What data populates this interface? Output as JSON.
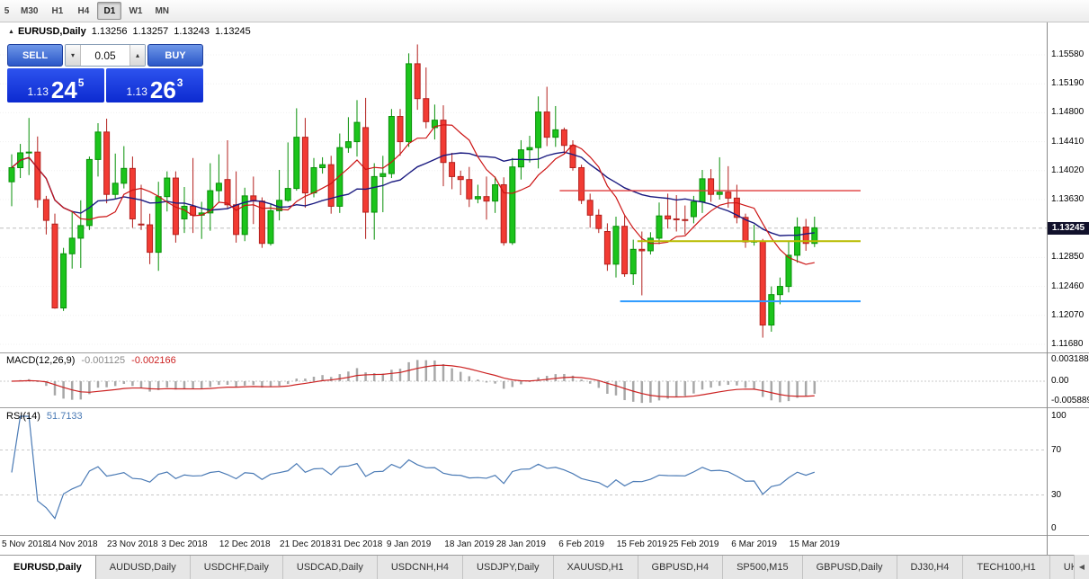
{
  "toolbar": {
    "timeframes": [
      {
        "label": "5",
        "active": false
      },
      {
        "label": "M30",
        "active": false
      },
      {
        "label": "H1",
        "active": false
      },
      {
        "label": "H4",
        "active": false
      },
      {
        "label": "D1",
        "active": true
      },
      {
        "label": "W1",
        "active": false
      },
      {
        "label": "MN",
        "active": false
      }
    ]
  },
  "chart_header": {
    "symbol": "EURUSD,Daily",
    "open": "1.13256",
    "high": "1.13257",
    "low": "1.13243",
    "close": "1.13245"
  },
  "trade_panel": {
    "sell_label": "SELL",
    "buy_label": "BUY",
    "volume": "0.05",
    "sell_price_prefix": "1.13",
    "sell_price_big": "24",
    "sell_price_sup": "5",
    "buy_price_prefix": "1.13",
    "buy_price_big": "26",
    "buy_price_sup": "3"
  },
  "icons": {
    "collapse_triangle": "▲",
    "volume_down": "▾",
    "volume_up": "▴",
    "tab_scroll_left": "◀"
  },
  "price_axis": [
    {
      "label": "1.15580",
      "price": 1.1558
    },
    {
      "label": "1.15190",
      "price": 1.1519
    },
    {
      "label": "1.14800",
      "price": 1.148
    },
    {
      "label": "1.14410",
      "price": 1.1441
    },
    {
      "label": "1.14020",
      "price": 1.1402
    },
    {
      "label": "1.13630",
      "price": 1.1363
    },
    {
      "label": "1.12850",
      "price": 1.1285
    },
    {
      "label": "1.12460",
      "price": 1.1246
    },
    {
      "label": "1.12070",
      "price": 1.1207
    },
    {
      "label": "1.11680",
      "price": 1.1168
    }
  ],
  "current_price": {
    "label": "1.13245",
    "price": 1.13245
  },
  "macd_panel": {
    "name": "MACD(12,26,9)",
    "value1": "-0.001125",
    "value2": "-0.002166",
    "axis": [
      "0.003188",
      "0.00",
      "-0.005889"
    ]
  },
  "rsi_panel": {
    "name": "RSI(14)",
    "value": "51.7133",
    "levels": [
      "100",
      "70",
      "30",
      "0"
    ],
    "level_values": [
      100,
      70,
      30,
      0
    ]
  },
  "date_axis": [
    {
      "label": "5 Nov 2018",
      "index": 0
    },
    {
      "label": "14 Nov 2018",
      "index": 7
    },
    {
      "label": "23 Nov 2018",
      "index": 14
    },
    {
      "label": "3 Dec 2018",
      "index": 20
    },
    {
      "label": "12 Dec 2018",
      "index": 27
    },
    {
      "label": "21 Dec 2018",
      "index": 34
    },
    {
      "label": "31 Dec 2018",
      "index": 40
    },
    {
      "label": "9 Jan 2019",
      "index": 46
    },
    {
      "label": "18 Jan 2019",
      "index": 53
    },
    {
      "label": "28 Jan 2019",
      "index": 59
    },
    {
      "label": "6 Feb 2019",
      "index": 66
    },
    {
      "label": "15 Feb 2019",
      "index": 73
    },
    {
      "label": "25 Feb 2019",
      "index": 79
    },
    {
      "label": "6 Mar 2019",
      "index": 86
    },
    {
      "label": "15 Mar 2019",
      "index": 93
    }
  ],
  "tabs": [
    {
      "label": "EURUSD,Daily",
      "active": true
    },
    {
      "label": "AUDUSD,Daily",
      "active": false
    },
    {
      "label": "USDCHF,Daily",
      "active": false
    },
    {
      "label": "USDCAD,Daily",
      "active": false
    },
    {
      "label": "USDCNH,H4",
      "active": false
    },
    {
      "label": "USDJPY,Daily",
      "active": false
    },
    {
      "label": "XAUUSD,H1",
      "active": false
    },
    {
      "label": "GBPUSD,H4",
      "active": false
    },
    {
      "label": "SP500,M15",
      "active": false
    },
    {
      "label": "GBPUSD,Daily",
      "active": false
    },
    {
      "label": "DJ30,H4",
      "active": false
    },
    {
      "label": "TECH100,H1",
      "active": false
    },
    {
      "label": "UKC",
      "active": false
    }
  ],
  "colors": {
    "up_fill": "#1cc41c",
    "up_border": "#089008",
    "down_fill": "#f23b33",
    "down_border": "#b3201d",
    "ma_fast": "#cc1414",
    "ma_slow": "#1a1a80",
    "macd_hist": "#a8a8a8",
    "macd_signal": "#cc2222",
    "rsi_line": "#4a7ab5",
    "badge_bg": "#11112b",
    "trade_blue": "#2a56c8",
    "price_panel_blue": "#0c2ad0"
  },
  "chart_data": {
    "type": "candlestick",
    "symbol": "EURUSD",
    "timeframe": "Daily",
    "price_range": [
      1.1157,
      1.1583
    ],
    "candles": [
      [
        1.1387,
        1.1424,
        1.1354,
        1.1406
      ],
      [
        1.1406,
        1.1438,
        1.1392,
        1.1426
      ],
      [
        1.1426,
        1.1473,
        1.1396,
        1.1427
      ],
      [
        1.1427,
        1.1448,
        1.1352,
        1.1363
      ],
      [
        1.1363,
        1.1368,
        1.1316,
        1.1335
      ],
      [
        1.133,
        1.1344,
        1.1216,
        1.1217
      ],
      [
        1.1217,
        1.1298,
        1.1213,
        1.129
      ],
      [
        1.129,
        1.1348,
        1.127,
        1.1311
      ],
      [
        1.1311,
        1.1362,
        1.1271,
        1.1328
      ],
      [
        1.1328,
        1.1421,
        1.1322,
        1.1417
      ],
      [
        1.1417,
        1.1466,
        1.1394,
        1.1454
      ],
      [
        1.1454,
        1.1472,
        1.1358,
        1.137
      ],
      [
        1.137,
        1.1425,
        1.1364,
        1.1385
      ],
      [
        1.1385,
        1.1435,
        1.1378,
        1.1405
      ],
      [
        1.1405,
        1.1421,
        1.1325,
        1.1337
      ],
      [
        1.133,
        1.1383,
        1.1322,
        1.1329
      ],
      [
        1.1329,
        1.1344,
        1.1276,
        1.1292
      ],
      [
        1.1292,
        1.1387,
        1.1267,
        1.1367
      ],
      [
        1.1367,
        1.1401,
        1.1347,
        1.1392
      ],
      [
        1.1392,
        1.1401,
        1.1305,
        1.1316
      ],
      [
        1.1337,
        1.138,
        1.1318,
        1.1354
      ],
      [
        1.1354,
        1.1419,
        1.1318,
        1.1342
      ],
      [
        1.1342,
        1.136,
        1.131,
        1.1345
      ],
      [
        1.1345,
        1.1412,
        1.1321,
        1.1375
      ],
      [
        1.1375,
        1.1424,
        1.136,
        1.1385
      ],
      [
        1.139,
        1.1443,
        1.1351,
        1.1356
      ],
      [
        1.1356,
        1.1401,
        1.1305,
        1.1316
      ],
      [
        1.1316,
        1.1379,
        1.1307,
        1.1368
      ],
      [
        1.1368,
        1.1394,
        1.133,
        1.1361
      ],
      [
        1.1361,
        1.1366,
        1.1298,
        1.1304
      ],
      [
        1.1304,
        1.1358,
        1.1301,
        1.1348
      ],
      [
        1.1348,
        1.1403,
        1.1335,
        1.1362
      ],
      [
        1.1362,
        1.144,
        1.136,
        1.1378
      ],
      [
        1.1378,
        1.1486,
        1.1375,
        1.1447
      ],
      [
        1.1447,
        1.1473,
        1.1352,
        1.1372
      ],
      [
        1.1372,
        1.1419,
        1.1366,
        1.1406
      ],
      [
        1.1406,
        1.142,
        1.1398,
        1.141
      ],
      [
        1.141,
        1.1422,
        1.1344,
        1.1354
      ],
      [
        1.1354,
        1.1452,
        1.1345,
        1.1433
      ],
      [
        1.1433,
        1.1474,
        1.1426,
        1.1441
      ],
      [
        1.1441,
        1.1497,
        1.1421,
        1.1467
      ],
      [
        1.146,
        1.15,
        1.131,
        1.1346
      ],
      [
        1.1346,
        1.1412,
        1.1309,
        1.1394
      ],
      [
        1.1394,
        1.1422,
        1.1346,
        1.1398
      ],
      [
        1.1398,
        1.1485,
        1.1392,
        1.1475
      ],
      [
        1.1475,
        1.1485,
        1.1422,
        1.1441
      ],
      [
        1.1441,
        1.156,
        1.1434,
        1.1546
      ],
      [
        1.1546,
        1.1572,
        1.1484,
        1.1499
      ],
      [
        1.1499,
        1.1541,
        1.1459,
        1.1468
      ],
      [
        1.146,
        1.1491,
        1.1444,
        1.147
      ],
      [
        1.147,
        1.149,
        1.1381,
        1.1413
      ],
      [
        1.1413,
        1.1426,
        1.1377,
        1.1394
      ],
      [
        1.1394,
        1.1402,
        1.1369,
        1.139
      ],
      [
        1.139,
        1.1407,
        1.1353,
        1.1364
      ],
      [
        1.1364,
        1.1383,
        1.1358,
        1.1367
      ],
      [
        1.1367,
        1.1394,
        1.1336,
        1.1361
      ],
      [
        1.1361,
        1.1394,
        1.1345,
        1.1383
      ],
      [
        1.1383,
        1.1393,
        1.1301,
        1.1305
      ],
      [
        1.1305,
        1.1419,
        1.1302,
        1.1407
      ],
      [
        1.1407,
        1.1443,
        1.139,
        1.143
      ],
      [
        1.143,
        1.1449,
        1.1413,
        1.1433
      ],
      [
        1.1433,
        1.1502,
        1.1405,
        1.1481
      ],
      [
        1.1481,
        1.1515,
        1.1435,
        1.1447
      ],
      [
        1.1447,
        1.1489,
        1.1434,
        1.1457
      ],
      [
        1.1457,
        1.146,
        1.1425,
        1.1436
      ],
      [
        1.1436,
        1.1443,
        1.1402,
        1.1406
      ],
      [
        1.1406,
        1.141,
        1.1357,
        1.1362
      ],
      [
        1.1362,
        1.1371,
        1.1325,
        1.1342
      ],
      [
        1.1342,
        1.135,
        1.1318,
        1.1324
      ],
      [
        1.132,
        1.1331,
        1.1267,
        1.1276
      ],
      [
        1.1276,
        1.134,
        1.1258,
        1.1327
      ],
      [
        1.1327,
        1.1341,
        1.1259,
        1.1263
      ],
      [
        1.1263,
        1.1309,
        1.1248,
        1.1296
      ],
      [
        1.1296,
        1.132,
        1.1234,
        1.1294
      ],
      [
        1.1294,
        1.1319,
        1.1289,
        1.1311
      ],
      [
        1.1311,
        1.1359,
        1.1303,
        1.1341
      ],
      [
        1.1341,
        1.1371,
        1.1324,
        1.1337
      ],
      [
        1.1337,
        1.1369,
        1.132,
        1.1336
      ],
      [
        1.1336,
        1.1355,
        1.1316,
        1.1335
      ],
      [
        1.134,
        1.1368,
        1.1331,
        1.136
      ],
      [
        1.136,
        1.1403,
        1.1345,
        1.1391
      ],
      [
        1.1391,
        1.1404,
        1.136,
        1.137
      ],
      [
        1.137,
        1.142,
        1.1363,
        1.1373
      ],
      [
        1.1373,
        1.1408,
        1.1352,
        1.1365
      ],
      [
        1.1365,
        1.1383,
        1.1331,
        1.1339
      ],
      [
        1.1339,
        1.1344,
        1.1298,
        1.1306
      ],
      [
        1.1306,
        1.1329,
        1.1301,
        1.1307
      ],
      [
        1.1307,
        1.131,
        1.1177,
        1.1194
      ],
      [
        1.1194,
        1.1246,
        1.1185,
        1.1235
      ],
      [
        1.1235,
        1.1258,
        1.1222,
        1.1246
      ],
      [
        1.1246,
        1.1306,
        1.1238,
        1.1288
      ],
      [
        1.1288,
        1.1339,
        1.1278,
        1.1326
      ],
      [
        1.1326,
        1.1337,
        1.1294,
        1.1304
      ],
      [
        1.1304,
        1.134,
        1.1299,
        1.1325
      ]
    ],
    "overlays": {
      "ma_fast": {
        "type": "sma",
        "period": 8
      },
      "ma_slow": {
        "type": "sma",
        "period": 21
      },
      "hlines": [
        {
          "price": 1.1375,
          "color": "#e03c3c",
          "from_index": 64,
          "width": 1.3
        },
        {
          "price": 1.1307,
          "color": "#b8bb00",
          "from_index": 73,
          "width": 2
        },
        {
          "price": 1.1226,
          "color": "#2e9bff",
          "from_index": 71,
          "width": 2
        }
      ],
      "bid_line": {
        "price": 1.13245
      }
    },
    "indicators": [
      {
        "type": "macd",
        "fast": 12,
        "slow": 26,
        "signal": 9,
        "shown_values": [
          "-0.001125",
          "-0.002166"
        ],
        "axis_labels": [
          "0.003188",
          "0.00",
          "-0.005889"
        ]
      },
      {
        "type": "rsi",
        "period": 14,
        "shown_value": "51.7133",
        "levels": [
          70,
          30
        ]
      }
    ]
  }
}
